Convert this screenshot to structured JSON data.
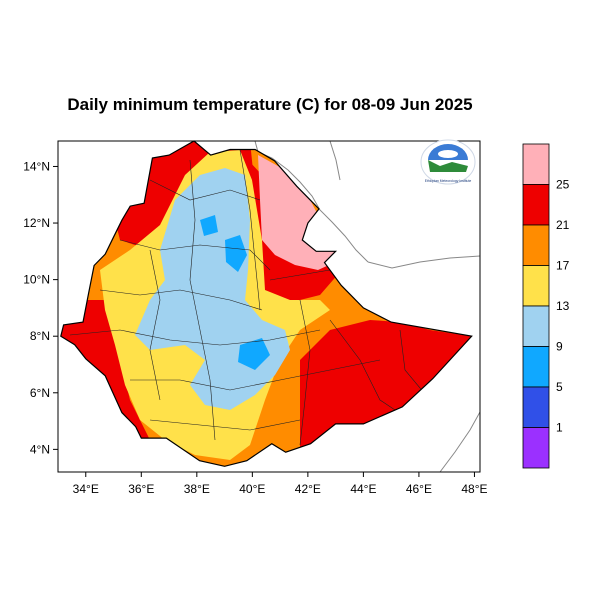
{
  "title": "Daily minimum temperature (C) for 08-09 Jun 2025",
  "chart_data": {
    "type": "heatmap",
    "title": "Daily minimum temperature (C) for 08-09 Jun 2025",
    "xlim": [
      33,
      48.2
    ],
    "ylim": [
      3.2,
      14.9
    ],
    "x_ticks": [
      34,
      36,
      38,
      40,
      42,
      44,
      46,
      48
    ],
    "x_tick_labels": [
      "34°E",
      "36°E",
      "38°E",
      "40°E",
      "42°E",
      "44°E",
      "46°E",
      "48°E"
    ],
    "y_ticks": [
      4,
      6,
      8,
      10,
      12,
      14
    ],
    "y_tick_labels": [
      "4°N",
      "6°N",
      "8°N",
      "10°N",
      "12°N",
      "14°N"
    ],
    "colorbar": {
      "levels": [
        "1",
        "5",
        "9",
        "13",
        "17",
        "21",
        "25"
      ],
      "colors": [
        "#9b30ff",
        "#3050e8",
        "#10a8ff",
        "#a0d2f0",
        "#ffe14a",
        "#ff8c00",
        "#ee0000",
        "#ffb0b8"
      ]
    },
    "regions": [
      {
        "name": "afar-lowland",
        "class": "gt25",
        "color": "#ffb0b8"
      },
      {
        "name": "northwest-western-lowlands",
        "class": "21-25",
        "color": "#ee0000"
      },
      {
        "name": "southeast-ogaden",
        "class": "21-25",
        "color": "#ee0000"
      },
      {
        "name": "highland-margins",
        "class": "17-21",
        "color": "#ff8c00"
      },
      {
        "name": "highland-plateau",
        "class": "13-17",
        "color": "#ffe14a"
      },
      {
        "name": "central-highlands",
        "class": "9-13",
        "color": "#a0d2f0"
      },
      {
        "name": "cold-pockets",
        "class": "5-9",
        "color": "#10a8ff"
      }
    ]
  },
  "logo": {
    "text": "Ethiopian Meteorology Institute",
    "colors": {
      "sky": "#3a7bd5",
      "land": "#2e8b3a",
      "cloud": "#ffffff"
    }
  }
}
